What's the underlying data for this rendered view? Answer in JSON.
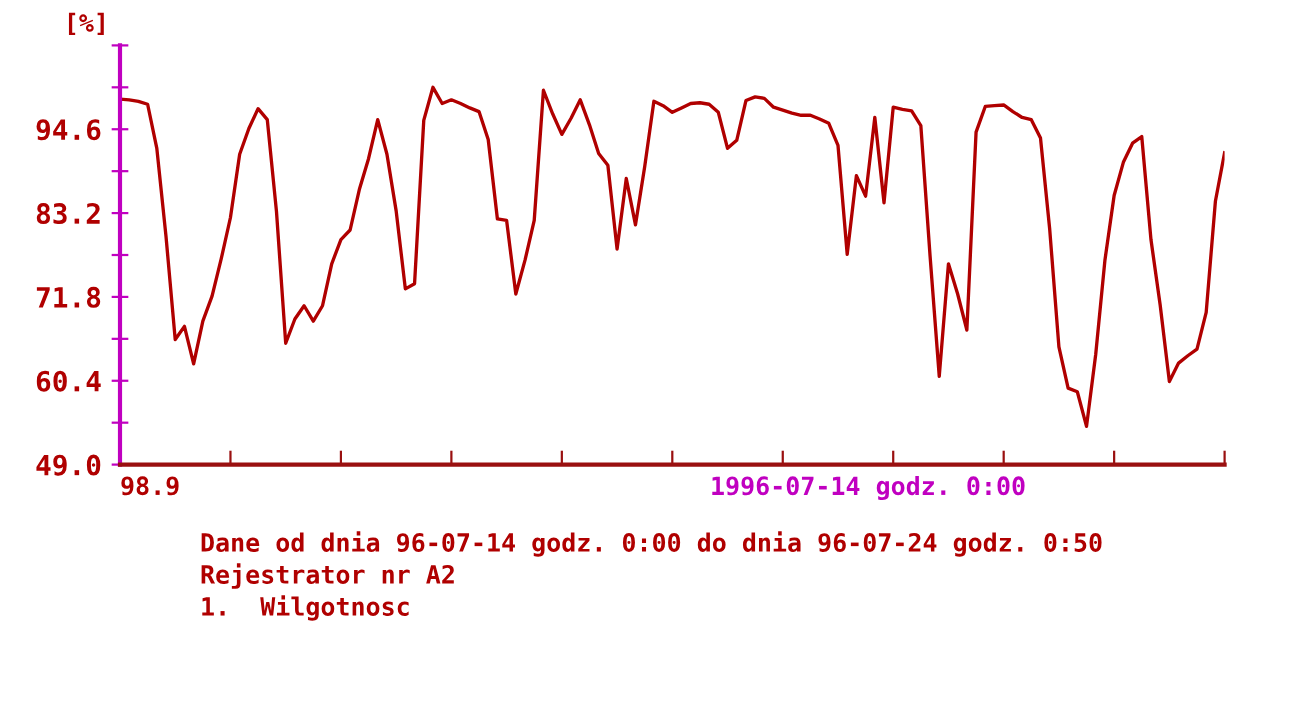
{
  "chart_data": {
    "type": "line",
    "ylabel": "[%]",
    "categories": [
      null,
      null,
      null,
      null,
      null,
      null,
      null,
      null,
      null,
      null,
      null,
      null,
      null,
      null,
      null,
      null,
      null,
      null,
      null,
      null,
      null,
      null,
      null,
      null,
      null,
      null,
      null,
      null,
      null,
      null,
      null,
      null,
      null,
      null,
      null,
      null,
      null,
      null,
      null,
      null,
      null,
      null,
      null,
      null,
      null,
      null,
      null,
      null,
      null,
      null,
      null,
      null,
      null,
      null,
      null,
      null,
      null,
      null,
      null,
      null,
      null,
      null,
      null,
      null,
      null,
      null,
      null,
      null,
      null,
      null,
      null,
      null,
      null,
      null,
      null,
      null,
      null,
      null,
      null,
      null,
      null,
      null,
      null,
      null,
      null,
      null,
      null,
      null,
      null,
      null,
      null,
      null,
      null,
      null,
      null,
      null,
      null,
      null,
      null,
      null,
      null,
      null,
      null,
      null,
      null,
      null,
      null,
      null,
      null,
      null,
      null,
      null,
      null,
      null,
      null,
      null,
      null,
      null,
      null,
      null,
      null
    ],
    "series": [
      {
        "color": "#b00000",
        "values": [
          98.7,
          98.6,
          98.4,
          98.0,
          92.0,
          80.0,
          66.0,
          67.8,
          62.7,
          68.5,
          71.9,
          77.0,
          82.6,
          91.2,
          94.7,
          97.4,
          95.9,
          83.4,
          65.5,
          68.8,
          70.6,
          68.5,
          70.6,
          76.3,
          79.6,
          80.9,
          86.4,
          90.6,
          95.9,
          91.2,
          83.5,
          72.9,
          73.6,
          95.8,
          100.3,
          98.1,
          98.6,
          98.1,
          97.5,
          97.0,
          93.2,
          82.4,
          82.2,
          72.2,
          76.8,
          82.2,
          99.9,
          96.7,
          93.9,
          96.1,
          98.6,
          95.2,
          91.3,
          89.7,
          78.3,
          87.9,
          81.6,
          89.5,
          98.4,
          97.8,
          96.9,
          97.5,
          98.1,
          98.2,
          98.0,
          96.9,
          92.0,
          93.1,
          98.5,
          99.0,
          98.8,
          97.6,
          97.2,
          96.8,
          96.5,
          96.5,
          96.0,
          95.4,
          92.4,
          77.6,
          88.3,
          85.5,
          96.2,
          84.6,
          97.6,
          97.3,
          97.1,
          95.1,
          77.4,
          61.0,
          76.3,
          72.2,
          67.3,
          94.2,
          97.7,
          97.8,
          97.9,
          97.0,
          96.2,
          95.9,
          93.4,
          81.0,
          65.0,
          59.4,
          58.9,
          54.2,
          64.0,
          76.8,
          85.6,
          90.1,
          92.7,
          93.6,
          79.6,
          70.7,
          60.3,
          62.8,
          63.8,
          64.7,
          69.7,
          84.8,
          91.4
        ]
      }
    ],
    "ylim": [
      49,
      106
    ],
    "yticks": [
      {
        "value": 49,
        "label": "49.0"
      },
      {
        "value": 54.7,
        "label": null
      },
      {
        "value": 60.4,
        "label": "60.4"
      },
      {
        "value": 66.1,
        "label": null
      },
      {
        "value": 71.8,
        "label": "71.8"
      },
      {
        "value": 77.5,
        "label": null
      },
      {
        "value": 83.2,
        "label": "83.2"
      },
      {
        "value": 88.9,
        "label": null
      },
      {
        "value": 94.6,
        "label": "94.6"
      },
      {
        "value": 100.3,
        "label": null
      },
      {
        "value": 106,
        "label": null
      }
    ],
    "tick_labels": "y",
    "grid": false,
    "legend": false,
    "marker": "none",
    "line_style": "solid",
    "annotations": [
      "98.9",
      "1996-07-14 godz. 0:00",
      "Dane od dnia 96-07-14 godz. 0:00 do dnia 96-07-24 godz. 0:50",
      "Rejestrator nr A2",
      "1.  Wilgotnosc"
    ]
  }
}
